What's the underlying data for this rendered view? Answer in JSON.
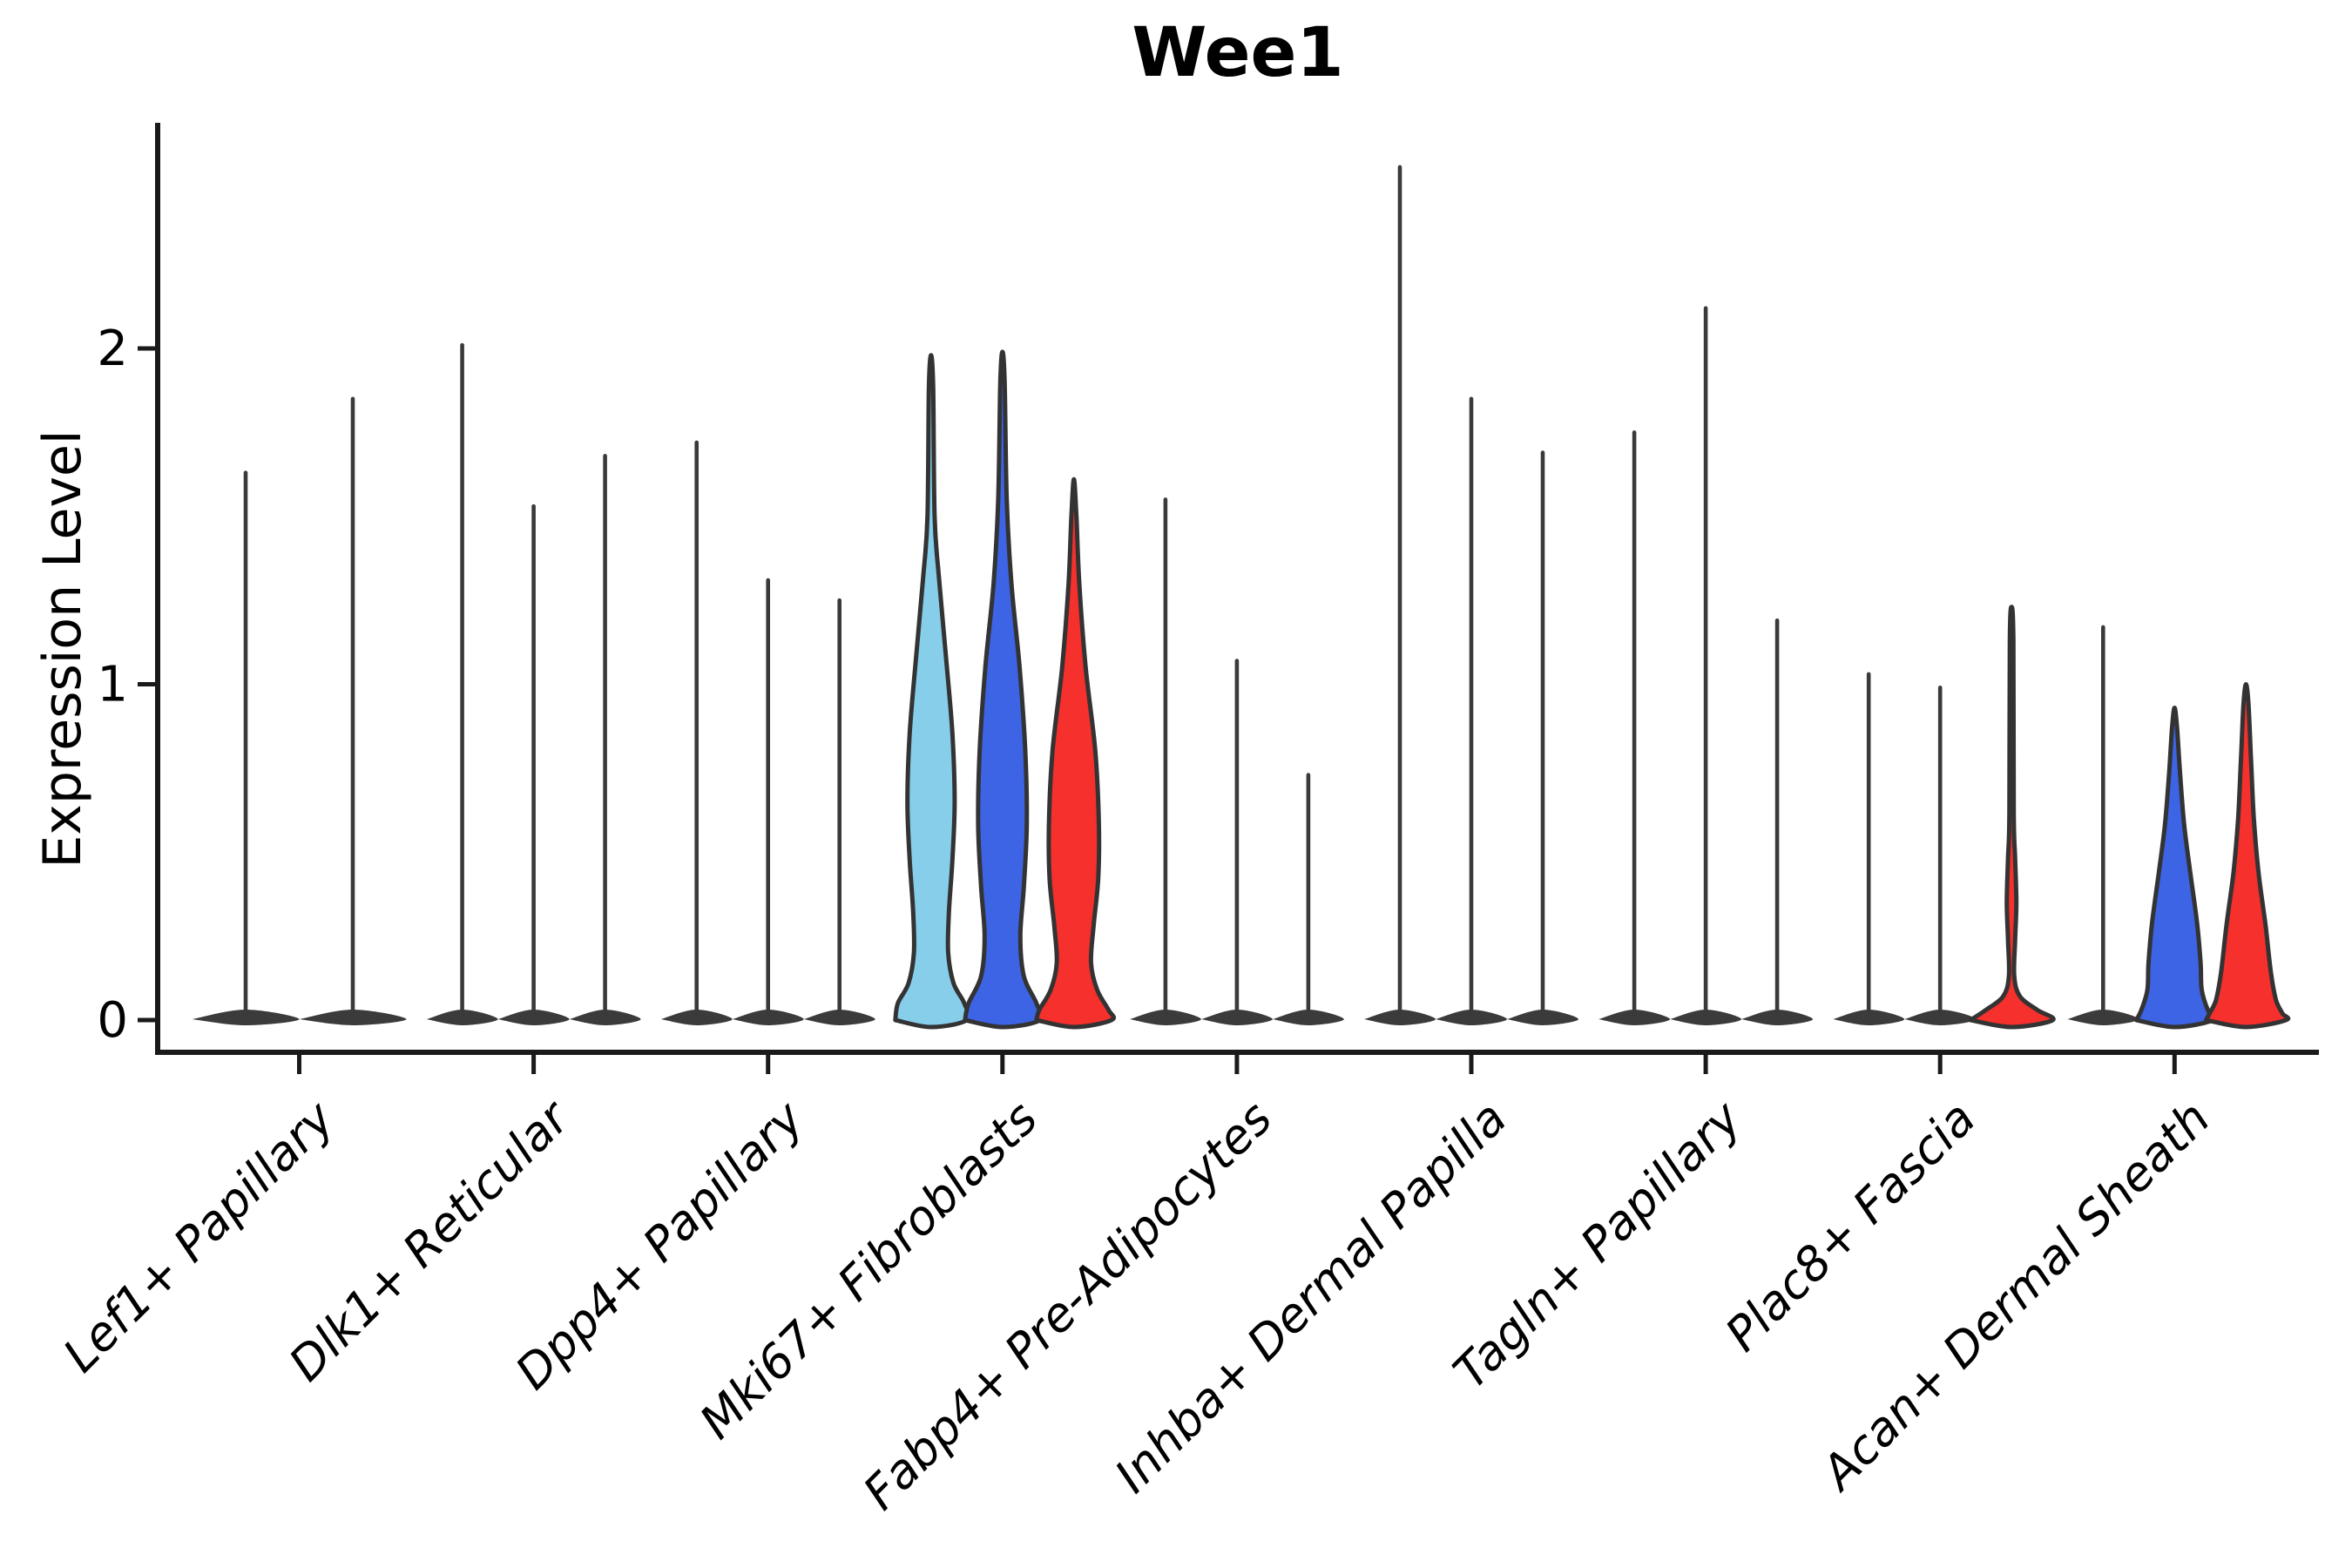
{
  "chart_data": {
    "type": "violin",
    "title": "Wee1",
    "xlabel": "",
    "ylabel": "Expression Level",
    "yticks": [
      0,
      1,
      2
    ],
    "ylim": [
      -0.09,
      2.67
    ],
    "grid": false,
    "legend_position": "none",
    "colors": {
      "split_lightblue": "#87CEEB",
      "split_blue": "#3D64E4",
      "split_red": "#F5302D",
      "spike": "#3A3A3A",
      "outline": "#333333",
      "axis": "#1A1A1A"
    },
    "categories": [
      "Lef1+ Papillary",
      "Dlk1+ Reticular",
      "Dpp4+ Papillary",
      "Mki67+ Fibroblasts",
      "Fabp4+ Pre-Adipocytes",
      "Inhba+ Dermal Papilla",
      "Tagln+ Papillary",
      "Plac8+ Fascia",
      "Acan+ Dermal Sheath"
    ],
    "groups": [
      {
        "category": "Lef1+ Papillary",
        "violins": [
          {
            "kind": "spike",
            "max": 1.63,
            "color": "#3A3A3A"
          },
          {
            "kind": "spike",
            "max": 1.85,
            "color": "#3A3A3A"
          }
        ]
      },
      {
        "category": "Dlk1+ Reticular",
        "violins": [
          {
            "kind": "spike",
            "max": 2.01,
            "color": "#3A3A3A"
          },
          {
            "kind": "spike",
            "max": 1.53,
            "color": "#3A3A3A"
          },
          {
            "kind": "spike",
            "max": 1.68,
            "color": "#3A3A3A"
          }
        ]
      },
      {
        "category": "Dpp4+ Papillary",
        "violins": [
          {
            "kind": "spike",
            "max": 1.72,
            "color": "#3A3A3A"
          },
          {
            "kind": "spike",
            "max": 1.31,
            "color": "#3A3A3A"
          },
          {
            "kind": "spike",
            "max": 1.25,
            "color": "#3A3A3A"
          }
        ]
      },
      {
        "category": "Mki67+ Fibroblasts",
        "violins": [
          {
            "kind": "violin",
            "max": 1.98,
            "color": "#87CEEB",
            "profile": [
              [
                1.98,
                0
              ],
              [
                1.88,
                0.06
              ],
              [
                1.5,
                0.1
              ],
              [
                1.32,
                0.22
              ],
              [
                1.08,
                0.42
              ],
              [
                0.85,
                0.6
              ],
              [
                0.65,
                0.66
              ],
              [
                0.48,
                0.6
              ],
              [
                0.32,
                0.5
              ],
              [
                0.2,
                0.48
              ],
              [
                0.11,
                0.63
              ],
              [
                0.05,
                0.93
              ],
              [
                0.0,
                1.0
              ]
            ]
          },
          {
            "kind": "violin",
            "max": 1.99,
            "color": "#3D64E4",
            "profile": [
              [
                1.99,
                0
              ],
              [
                1.9,
                0.06
              ],
              [
                1.55,
                0.12
              ],
              [
                1.3,
                0.25
              ],
              [
                1.05,
                0.48
              ],
              [
                0.8,
                0.64
              ],
              [
                0.58,
                0.68
              ],
              [
                0.4,
                0.6
              ],
              [
                0.25,
                0.5
              ],
              [
                0.13,
                0.6
              ],
              [
                0.05,
                0.95
              ],
              [
                0.0,
                1.05
              ]
            ]
          },
          {
            "kind": "violin",
            "max": 1.61,
            "color": "#F5302D",
            "profile": [
              [
                1.61,
                0
              ],
              [
                1.5,
                0.07
              ],
              [
                1.3,
                0.15
              ],
              [
                1.05,
                0.33
              ],
              [
                0.8,
                0.6
              ],
              [
                0.58,
                0.7
              ],
              [
                0.42,
                0.68
              ],
              [
                0.28,
                0.55
              ],
              [
                0.17,
                0.48
              ],
              [
                0.09,
                0.65
              ],
              [
                0.03,
                0.97
              ],
              [
                0.0,
                1.05
              ]
            ]
          }
        ]
      },
      {
        "category": "Fabp4+ Pre-Adipocytes",
        "violins": [
          {
            "kind": "spike",
            "max": 1.55,
            "color": "#3A3A3A"
          },
          {
            "kind": "spike",
            "max": 1.07,
            "color": "#3A3A3A"
          },
          {
            "kind": "spike",
            "max": 0.73,
            "color": "#3A3A3A"
          }
        ]
      },
      {
        "category": "Inhba+ Dermal Papilla",
        "violins": [
          {
            "kind": "spike",
            "max": 2.54,
            "color": "#3A3A3A"
          },
          {
            "kind": "spike",
            "max": 1.85,
            "color": "#3A3A3A"
          },
          {
            "kind": "spike",
            "max": 1.69,
            "color": "#3A3A3A"
          }
        ]
      },
      {
        "category": "Tagln+ Papillary",
        "violins": [
          {
            "kind": "spike",
            "max": 1.75,
            "color": "#3A3A3A"
          },
          {
            "kind": "spike",
            "max": 2.12,
            "color": "#3A3A3A"
          },
          {
            "kind": "spike",
            "max": 1.19,
            "color": "#3A3A3A"
          }
        ]
      },
      {
        "category": "Plac8+ Fascia",
        "violins": [
          {
            "kind": "spike",
            "max": 1.03,
            "color": "#3A3A3A"
          },
          {
            "kind": "spike",
            "max": 0.99,
            "color": "#3A3A3A"
          },
          {
            "kind": "violin",
            "max": 1.23,
            "color": "#F5302D",
            "profile": [
              [
                1.23,
                0
              ],
              [
                1.13,
                0.05
              ],
              [
                0.62,
                0.06
              ],
              [
                0.48,
                0.1
              ],
              [
                0.35,
                0.135
              ],
              [
                0.24,
                0.1
              ],
              [
                0.13,
                0.075
              ],
              [
                0.07,
                0.24
              ],
              [
                0.03,
                0.72
              ],
              [
                0.0,
                1.15
              ]
            ]
          }
        ]
      },
      {
        "category": "Acan+ Dermal Sheath",
        "violins": [
          {
            "kind": "spike",
            "max": 1.17,
            "color": "#3A3A3A"
          },
          {
            "kind": "violin",
            "max": 0.93,
            "color": "#3D64E4",
            "profile": [
              [
                0.93,
                0
              ],
              [
                0.87,
                0.07
              ],
              [
                0.74,
                0.15
              ],
              [
                0.58,
                0.27
              ],
              [
                0.44,
                0.44
              ],
              [
                0.29,
                0.63
              ],
              [
                0.17,
                0.73
              ],
              [
                0.09,
                0.76
              ],
              [
                0.03,
                0.93
              ],
              [
                0.0,
                1.07
              ]
            ]
          },
          {
            "kind": "violin",
            "max": 1.0,
            "color": "#F5302D",
            "profile": [
              [
                1.0,
                0
              ],
              [
                0.94,
                0.07
              ],
              [
                0.78,
                0.14
              ],
              [
                0.6,
                0.22
              ],
              [
                0.44,
                0.35
              ],
              [
                0.28,
                0.55
              ],
              [
                0.14,
                0.7
              ],
              [
                0.06,
                0.84
              ],
              [
                0.02,
                1.02
              ],
              [
                0.0,
                1.12
              ]
            ]
          }
        ]
      }
    ]
  }
}
